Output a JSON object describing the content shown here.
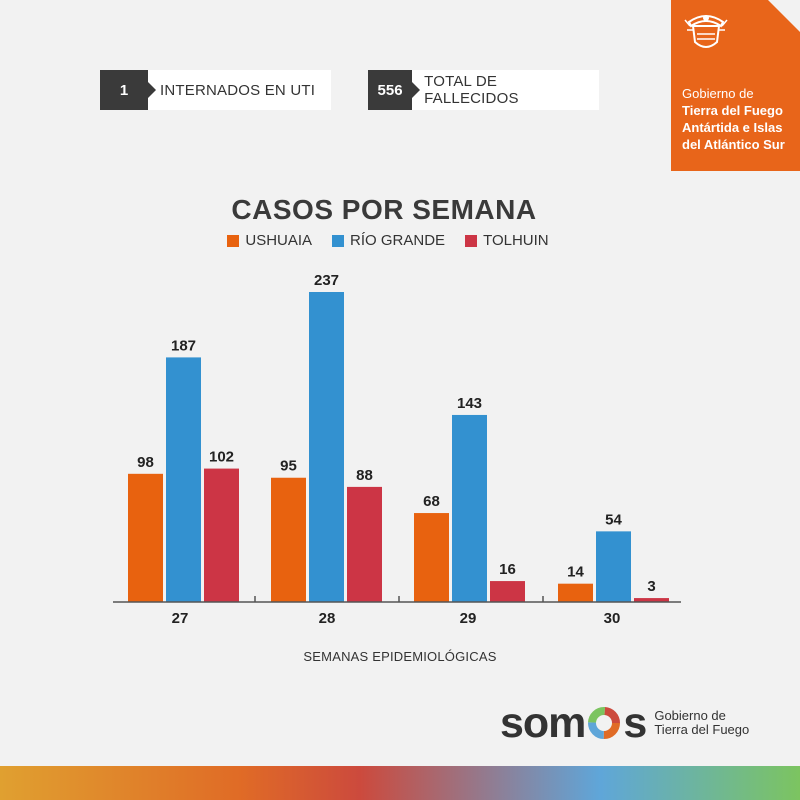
{
  "stats": [
    {
      "value": "1",
      "label": "INTERNADOS EN UTI"
    },
    {
      "value": "556",
      "label": "TOTAL DE FALLECIDOS"
    }
  ],
  "gov": {
    "line1": "Gobierno de",
    "line2": "Tierra del Fuego",
    "line3": "Antártida e Islas",
    "line4": "del Atlántico Sur"
  },
  "chart_data": {
    "type": "bar",
    "title": "CASOS POR SEMANA",
    "xlabel": "SEMANAS EPIDEMIOLÓGICAS",
    "ylabel": "",
    "categories": [
      "27",
      "28",
      "29",
      "30"
    ],
    "series": [
      {
        "name": "USHUAIA",
        "color": "#e8620f",
        "values": [
          98,
          95,
          68,
          14
        ]
      },
      {
        "name": "RÍO GRANDE",
        "color": "#3391d0",
        "values": [
          187,
          237,
          143,
          54
        ]
      },
      {
        "name": "TOLHUIN",
        "color": "#cc3545",
        "values": [
          102,
          88,
          16,
          3
        ]
      }
    ],
    "ylim": [
      0,
      237
    ],
    "legend": "top-center",
    "grid": false
  },
  "brand": {
    "word_left": "som",
    "word_right": "s",
    "sub_line1": "Gobierno de",
    "sub_line2": "Tierra del Fuego"
  }
}
